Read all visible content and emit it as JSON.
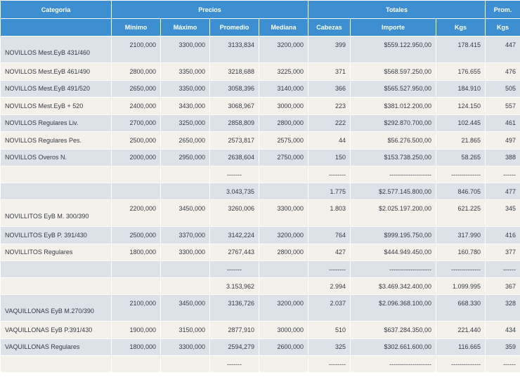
{
  "header": {
    "categoria": "Categoria",
    "precios": "Precios",
    "totales": "Totales",
    "prom": "Prom.",
    "minimo": "Mínimo",
    "maximo": "Máximo",
    "promedio": "Promedio",
    "mediana": "Mediana",
    "cabezas": "Cabezas",
    "importe": "Importe",
    "kgs": "Kgs",
    "prom_kgs": "Kgs"
  },
  "rows": [
    {
      "cat": "NOVILLOS Mest.EyB 431/460",
      "min": "2100,000",
      "max": "3300,000",
      "prom": "3133,834",
      "med": "3200,000",
      "cab": "399",
      "imp": "$559.122.950,00",
      "kgs": "178.415",
      "pkgs": "447"
    },
    {
      "cat": "NOVILLOS Mest.EyB 461/490",
      "min": "2800,000",
      "max": "3350,000",
      "prom": "3218,688",
      "med": "3225,000",
      "cab": "371",
      "imp": "$568.597.250,00",
      "kgs": "176.655",
      "pkgs": "476"
    },
    {
      "cat": "NOVILLOS Mest.EyB 491/520",
      "min": "2650,000",
      "max": "3350,000",
      "prom": "3058,396",
      "med": "3140,000",
      "cab": "366",
      "imp": "$565.527.950,00",
      "kgs": "184.910",
      "pkgs": "505"
    },
    {
      "cat": "NOVILLOS Mest.EyB + 520",
      "min": "2400,000",
      "max": "3430,000",
      "prom": "3068,967",
      "med": "3000,000",
      "cab": "223",
      "imp": "$381.012.200,00",
      "kgs": "124.150",
      "pkgs": "557"
    },
    {
      "cat": "NOVILLOS Regulares Liv.",
      "min": "2700,000",
      "max": "3250,000",
      "prom": "2858,809",
      "med": "2800,000",
      "cab": "222",
      "imp": "$292.870.700,00",
      "kgs": "102.445",
      "pkgs": "461"
    },
    {
      "cat": "NOVILLOS Regulares Pes.",
      "min": "2500,000",
      "max": "2650,000",
      "prom": "2573,817",
      "med": "2575,000",
      "cab": "44",
      "imp": "$56.276.500,00",
      "kgs": "21.865",
      "pkgs": "497"
    },
    {
      "cat": "NOVILLOS Overos N.",
      "min": "2000,000",
      "max": "2950,000",
      "prom": "2638,604",
      "med": "2750,000",
      "cab": "150",
      "imp": "$153.738.250,00",
      "kgs": "58.265",
      "pkgs": "388"
    },
    {
      "sep_prom": "-------",
      "sep_cab": "--------",
      "sep_imp": "--------------------",
      "sep_kgs": "--------------",
      "sep_pkgs": "------"
    },
    {
      "total_prom": "3.043,735",
      "total_cab": "1.775",
      "total_imp": "$2.577.145.800,00",
      "total_kgs": "846.705",
      "total_pkgs": "477"
    },
    {
      "cat": "NOVILLITOS EyB M. 300/390",
      "min": "2200,000",
      "max": "3450,000",
      "prom": "3260,006",
      "med": "3300,000",
      "cab": "1.803",
      "imp": "$2.025.197.200,00",
      "kgs": "621.225",
      "pkgs": "345"
    },
    {
      "cat": "NOVILLITOS EyB P. 391/430",
      "min": "2500,000",
      "max": "3370,000",
      "prom": "3142,224",
      "med": "3200,000",
      "cab": "764",
      "imp": "$999.195.750,00",
      "kgs": "317.990",
      "pkgs": "416"
    },
    {
      "cat": "NOVILLITOS Regulares",
      "min": "1800,000",
      "max": "3300,000",
      "prom": "2767,443",
      "med": "2800,000",
      "cab": "427",
      "imp": "$444.949.450,00",
      "kgs": "160.780",
      "pkgs": "377"
    },
    {
      "sep_prom": "-------",
      "sep_cab": "--------",
      "sep_imp": "--------------------",
      "sep_kgs": "--------------",
      "sep_pkgs": "------"
    },
    {
      "total_prom": "3.153,962",
      "total_cab": "2.994",
      "total_imp": "$3.469.342.400,00",
      "total_kgs": "1.099.995",
      "total_pkgs": "367"
    },
    {
      "cat": "VAQUILLONAS EyB M.270/390",
      "min": "2100,000",
      "max": "3450,000",
      "prom": "3136,726",
      "med": "3200,000",
      "cab": "2.037",
      "imp": "$2.096.368.100,00",
      "kgs": "668.330",
      "pkgs": "328"
    },
    {
      "cat": "VAQUILLONAS EyB P.391/430",
      "min": "1900,000",
      "max": "3150,000",
      "prom": "2877,910",
      "med": "3000,000",
      "cab": "510",
      "imp": "$637.284.350,00",
      "kgs": "221.440",
      "pkgs": "434"
    },
    {
      "cat": "VAQUILLONAS Regulares",
      "min": "1800,000",
      "max": "3300,000",
      "prom": "2594,279",
      "med": "2600,000",
      "cab": "325",
      "imp": "$302.661.600,00",
      "kgs": "116.665",
      "pkgs": "359"
    },
    {
      "sep_prom": "-------",
      "sep_cab": "--------",
      "sep_imp": "--------------------",
      "sep_kgs": "--------------",
      "sep_pkgs": "------"
    }
  ]
}
